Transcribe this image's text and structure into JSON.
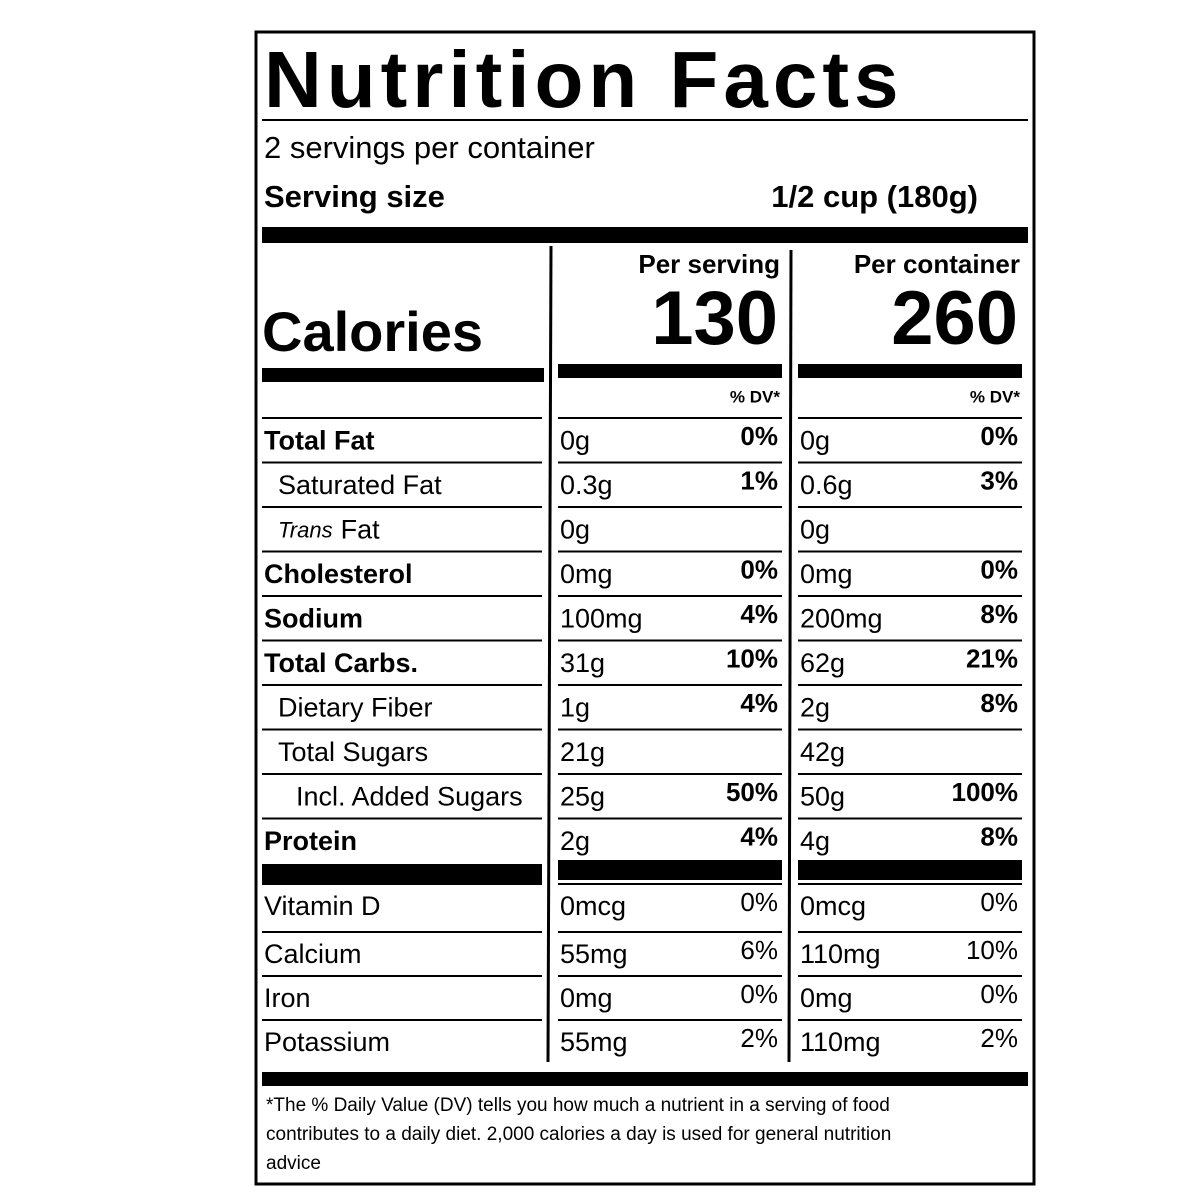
{
  "title": "Nutrition Facts",
  "servings": "2 servings per container",
  "serving_size_label": "Serving size",
  "serving_size": "1/2 cup (180g)",
  "calories_label": "Calories",
  "columns": [
    {
      "header": "Per serving",
      "calories": "130",
      "dv_header": "% DV*"
    },
    {
      "header": "Per container",
      "calories": "260",
      "dv_header": "% DV*"
    }
  ],
  "nutrients": [
    {
      "name": "Total Fat",
      "level": 0,
      "values": [
        [
          "0g",
          "0%"
        ],
        [
          "0g",
          "0%"
        ]
      ]
    },
    {
      "name": "Saturated Fat",
      "level": 1,
      "values": [
        [
          "0.3g",
          "1%"
        ],
        [
          "0.6g",
          "3%"
        ]
      ]
    },
    {
      "name_italic": "Trans",
      "name": "Fat",
      "level": 1,
      "values": [
        [
          "0g",
          null
        ],
        [
          "0g",
          null
        ]
      ]
    },
    {
      "name": "Cholesterol",
      "level": 0,
      "values": [
        [
          "0mg",
          "0%"
        ],
        [
          "0mg",
          "0%"
        ]
      ]
    },
    {
      "name": "Sodium",
      "level": 0,
      "values": [
        [
          "100mg",
          "4%"
        ],
        [
          "200mg",
          "8%"
        ]
      ]
    },
    {
      "name": "Total Carbs.",
      "level": 0,
      "values": [
        [
          "31g",
          "10%"
        ],
        [
          "62g",
          "21%"
        ]
      ]
    },
    {
      "name": "Dietary Fiber",
      "level": 1,
      "values": [
        [
          "1g",
          "4%"
        ],
        [
          "2g",
          "8%"
        ]
      ]
    },
    {
      "name": "Total Sugars",
      "level": 1,
      "values": [
        [
          "21g",
          null
        ],
        [
          "42g",
          null
        ]
      ]
    },
    {
      "name": "Incl. Added Sugars",
      "level": 2,
      "values": [
        [
          "25g",
          "50%"
        ],
        [
          "50g",
          "100%"
        ]
      ]
    },
    {
      "name": "Protein",
      "level": 0,
      "values": [
        [
          "2g",
          "4%"
        ],
        [
          "4g",
          "8%"
        ]
      ]
    }
  ],
  "vitamins": [
    {
      "name": "Vitamin D",
      "values": [
        [
          "0mcg",
          "0%"
        ],
        [
          "0mcg",
          "0%"
        ]
      ]
    },
    {
      "name": "Calcium",
      "values": [
        [
          "55mg",
          "6%"
        ],
        [
          "110mg",
          "10%"
        ]
      ]
    },
    {
      "name": "Iron",
      "values": [
        [
          "0mg",
          "0%"
        ],
        [
          "0mg",
          "0%"
        ]
      ]
    },
    {
      "name": "Potassium",
      "values": [
        [
          "55mg",
          "2%"
        ],
        [
          "110mg",
          "2%"
        ]
      ]
    }
  ],
  "footnote": [
    "*The % Daily Value (DV) tells you how much a nutrient in a serving of food",
    "contributes to a daily diet. 2,000 calories a day is used for general nutrition",
    "advice"
  ]
}
